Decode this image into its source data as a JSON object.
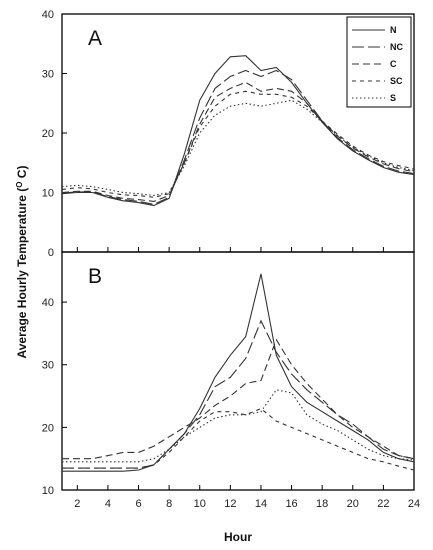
{
  "figure": {
    "ylabel": "Average Hourly Temperature (",
    "ylabel_sup": "O",
    "ylabel_unit": " C)",
    "xlabel": "Hour"
  },
  "chart_data": [
    {
      "type": "line",
      "panel_label": "A",
      "xlim": [
        1,
        24
      ],
      "ylim": [
        0,
        40
      ],
      "x_ticks": [
        2,
        4,
        6,
        8,
        10,
        12,
        14,
        16,
        18,
        20,
        22,
        24
      ],
      "y_ticks": [
        0,
        10,
        20,
        30,
        40
      ],
      "grid": false,
      "legend_position": "top-right",
      "x": [
        1,
        2,
        3,
        4,
        5,
        6,
        7,
        8,
        9,
        10,
        11,
        12,
        13,
        14,
        15,
        16,
        17,
        18,
        19,
        20,
        21,
        22,
        23,
        24
      ],
      "series": [
        {
          "name": "N",
          "dash": "",
          "values": [
            9.8,
            10.0,
            10.0,
            9.2,
            8.6,
            8.3,
            7.8,
            9.0,
            16.5,
            25.5,
            30.0,
            32.8,
            33.0,
            30.5,
            31.0,
            28.5,
            25.0,
            21.8,
            19.0,
            17.0,
            15.5,
            14.2,
            13.4,
            13.0
          ]
        },
        {
          "name": "NC",
          "dash": "12,4",
          "values": [
            9.9,
            10.1,
            10.1,
            9.3,
            8.8,
            8.5,
            8.0,
            9.2,
            15.5,
            22.5,
            27.5,
            29.5,
            30.5,
            29.5,
            30.5,
            29.0,
            25.5,
            22.0,
            19.2,
            17.2,
            15.7,
            14.4,
            13.6,
            13.2
          ]
        },
        {
          "name": "C",
          "dash": "7,4",
          "values": [
            10.0,
            10.2,
            10.2,
            9.5,
            9.0,
            8.8,
            8.5,
            9.5,
            15.0,
            21.5,
            26.0,
            27.5,
            28.5,
            27.0,
            27.5,
            27.0,
            25.0,
            22.0,
            19.5,
            17.5,
            16.0,
            14.8,
            14.0,
            13.5
          ]
        },
        {
          "name": "SC",
          "dash": "4,4",
          "values": [
            10.5,
            10.8,
            10.6,
            10.0,
            9.6,
            9.5,
            9.2,
            9.8,
            15.0,
            21.0,
            24.5,
            26.5,
            27.0,
            26.5,
            26.5,
            26.0,
            24.5,
            22.0,
            19.8,
            17.8,
            16.3,
            15.2,
            14.5,
            14.0
          ]
        },
        {
          "name": "S",
          "dash": "1.5,2.5",
          "values": [
            11.0,
            11.2,
            11.0,
            10.5,
            10.0,
            9.8,
            9.5,
            10.0,
            14.5,
            20.0,
            23.0,
            24.5,
            25.0,
            24.5,
            25.0,
            25.5,
            24.0,
            21.8,
            19.6,
            17.6,
            16.2,
            15.0,
            14.2,
            13.7
          ]
        }
      ]
    },
    {
      "type": "line",
      "panel_label": "B",
      "xlim": [
        1,
        24
      ],
      "ylim": [
        10,
        48
      ],
      "x_ticks": [
        2,
        4,
        6,
        8,
        10,
        12,
        14,
        16,
        18,
        20,
        22,
        24
      ],
      "y_ticks": [
        10,
        20,
        30,
        40
      ],
      "grid": false,
      "x": [
        1,
        2,
        3,
        4,
        5,
        6,
        7,
        8,
        9,
        10,
        11,
        12,
        13,
        14,
        15,
        16,
        17,
        18,
        19,
        20,
        21,
        22,
        23,
        24
      ],
      "series": [
        {
          "name": "N",
          "dash": "",
          "values": [
            13.0,
            13.0,
            13.0,
            13.0,
            13.0,
            13.2,
            14.0,
            16.5,
            19.0,
            23.0,
            28.0,
            31.5,
            34.5,
            44.5,
            31.5,
            26.5,
            24.0,
            22.5,
            21.0,
            19.5,
            18.0,
            16.0,
            15.0,
            14.5
          ]
        },
        {
          "name": "NC",
          "dash": "12,4",
          "values": [
            13.5,
            13.5,
            13.5,
            13.5,
            13.5,
            13.5,
            14.0,
            16.5,
            19.0,
            22.0,
            26.5,
            28.0,
            31.0,
            37.0,
            32.0,
            28.5,
            26.0,
            24.0,
            22.0,
            20.5,
            18.5,
            16.5,
            15.5,
            15.0
          ]
        },
        {
          "name": "C",
          "dash": "7,4",
          "values": [
            15.0,
            15.0,
            15.0,
            15.5,
            16.0,
            16.0,
            17.0,
            18.5,
            20.0,
            21.5,
            23.5,
            25.0,
            27.0,
            27.5,
            34.0,
            30.0,
            27.0,
            24.5,
            22.0,
            20.0,
            18.5,
            17.0,
            15.5,
            15.0
          ]
        },
        {
          "name": "SC",
          "dash": "4,4",
          "values": [
            13.5,
            13.5,
            13.5,
            13.5,
            13.5,
            13.5,
            14.0,
            16.0,
            18.5,
            21.0,
            22.5,
            22.5,
            22.0,
            23.0,
            21.0,
            20.0,
            19.0,
            18.0,
            17.0,
            16.0,
            15.0,
            14.5,
            13.8,
            13.2
          ]
        },
        {
          "name": "S",
          "dash": "1.5,2.5",
          "values": [
            14.5,
            14.5,
            14.5,
            14.5,
            14.5,
            14.5,
            15.0,
            16.5,
            18.5,
            20.0,
            21.5,
            22.0,
            22.0,
            22.5,
            26.0,
            25.5,
            22.0,
            20.5,
            19.5,
            18.0,
            16.5,
            15.5,
            15.0,
            14.8
          ]
        }
      ]
    }
  ]
}
